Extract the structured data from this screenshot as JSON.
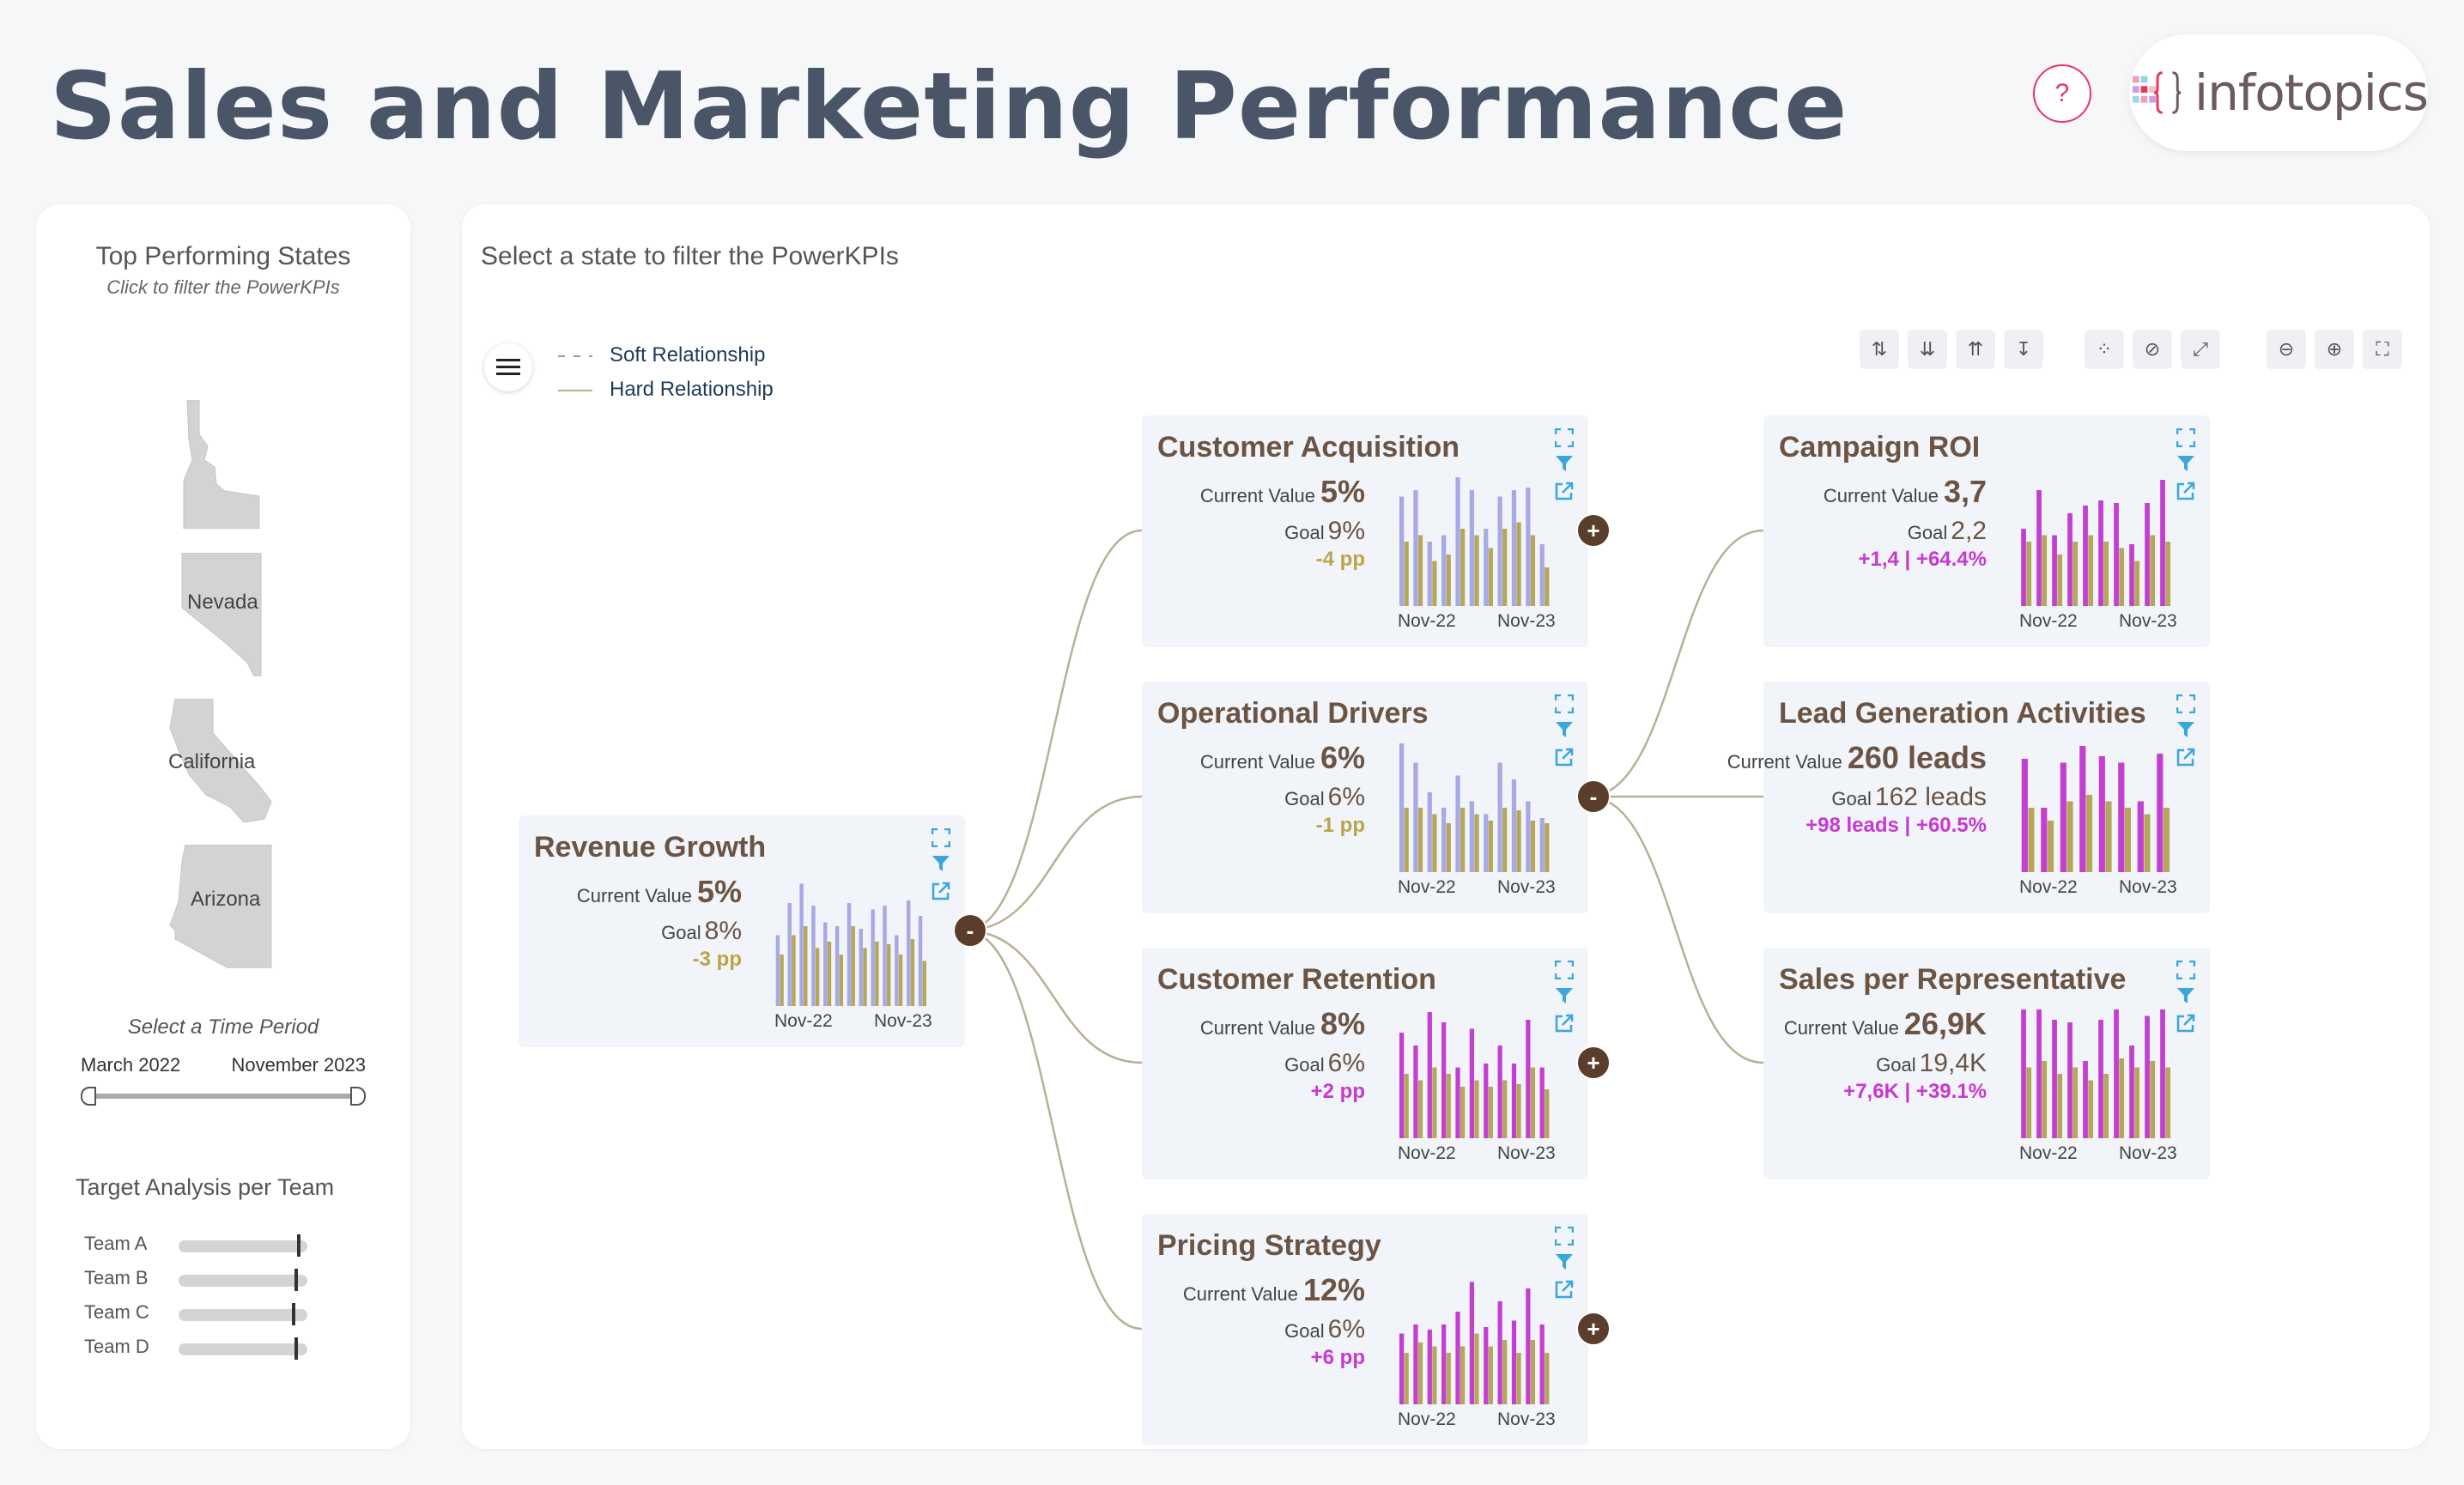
{
  "header": {
    "title": "Sales and Marketing Performance",
    "help": "?",
    "logo_text": "infotopics"
  },
  "left": {
    "title": "Top Performing States",
    "subtitle": "Click to filter the PowerKPIs",
    "states": [
      {
        "name": "Idaho",
        "label": ""
      },
      {
        "name": "Nevada",
        "label": "Nevada"
      },
      {
        "name": "California",
        "label": "California"
      },
      {
        "name": "Arizona",
        "label": "Arizona"
      }
    ],
    "time": {
      "title": "Select a Time Period",
      "from": "March 2022",
      "to": "November 2023"
    },
    "target": {
      "title": "Target Analysis per Team",
      "teams": [
        {
          "name": "Team A",
          "value": 0.92
        },
        {
          "name": "Team B",
          "value": 0.9
        },
        {
          "name": "Team C",
          "value": 0.88
        },
        {
          "name": "Team D",
          "value": 0.9
        }
      ]
    }
  },
  "main": {
    "instruction": "Select a state to filter the PowerKPIs",
    "legend": {
      "soft": "Soft Relationship",
      "hard": "Hard Relationship"
    },
    "colors": {
      "card_bg": "#f1f4f8",
      "bar_lavender": "#a7a9e6",
      "bar_olive": "#b5a65a",
      "bar_magenta": "#c33fd2",
      "neg": "#b9a64a",
      "pos": "#c938d1",
      "title": "#6b5443",
      "link": "#b8b095"
    },
    "cards": [
      {
        "id": "revenue",
        "title": "Revenue Growth",
        "cv_label": "Current Value",
        "cv": "5%",
        "goal_label": "Goal",
        "goal": "8%",
        "variance": "-3 pp",
        "positive": false,
        "x_start": "Nov-22",
        "x_end": "Nov-23",
        "toggle": "-",
        "bars": [
          [
            0.55,
            0.4,
            0
          ],
          [
            0.8,
            0.55,
            0
          ],
          [
            0.95,
            0.62,
            0
          ],
          [
            0.78,
            0.45,
            0
          ],
          [
            0.65,
            0.5,
            0
          ],
          [
            0.62,
            0.4,
            0
          ],
          [
            0.8,
            0.62,
            0
          ],
          [
            0.6,
            0.45,
            0
          ],
          [
            0.75,
            0.5,
            0
          ],
          [
            0.78,
            0.48,
            0
          ],
          [
            0.55,
            0.4,
            0
          ],
          [
            0.82,
            0.52,
            0
          ],
          [
            0.7,
            0.35,
            0
          ]
        ]
      },
      {
        "id": "acq",
        "title": "Customer Acquisition",
        "cv_label": "Current Value",
        "cv": "5%",
        "goal_label": "Goal",
        "goal": "9%",
        "variance": "-4 pp",
        "positive": false,
        "x_start": "Nov-22",
        "x_end": "Nov-23",
        "toggle": "+",
        "bars": [
          [
            0.85,
            0.5,
            0
          ],
          [
            0.9,
            0.55,
            0
          ],
          [
            0.5,
            0.35,
            0
          ],
          [
            0.55,
            0.4,
            0
          ],
          [
            1.0,
            0.6,
            0
          ],
          [
            0.9,
            0.55,
            0
          ],
          [
            0.6,
            0.45,
            0
          ],
          [
            0.85,
            0.6,
            0
          ],
          [
            0.9,
            0.65,
            0
          ],
          [
            0.92,
            0.55,
            0
          ],
          [
            0.48,
            0.3,
            0
          ]
        ]
      },
      {
        "id": "ops",
        "title": "Operational Drivers",
        "cv_label": "Current Value",
        "cv": "6%",
        "goal_label": "Goal",
        "goal": "6%",
        "variance": "-1 pp",
        "positive": false,
        "x_start": "Nov-22",
        "x_end": "Nov-23",
        "toggle": "-",
        "bars": [
          [
            1.0,
            0.5,
            0
          ],
          [
            0.85,
            0.5,
            0
          ],
          [
            0.62,
            0.45,
            0
          ],
          [
            0.5,
            0.38,
            0
          ],
          [
            0.75,
            0.5,
            0
          ],
          [
            0.55,
            0.45,
            0
          ],
          [
            0.45,
            0.4,
            0
          ],
          [
            0.85,
            0.5,
            0
          ],
          [
            0.72,
            0.48,
            0
          ],
          [
            0.55,
            0.4,
            0
          ],
          [
            0.42,
            0.38,
            0
          ]
        ]
      },
      {
        "id": "ret",
        "title": "Customer Retention",
        "cv_label": "Current Value",
        "cv": "8%",
        "goal_label": "Goal",
        "goal": "6%",
        "variance": "+2 pp",
        "positive": true,
        "x_start": "Nov-22",
        "x_end": "Nov-23",
        "toggle": "+",
        "bars": [
          [
            0.82,
            0.5,
            0
          ],
          [
            0.72,
            0.45,
            0
          ],
          [
            0.98,
            0.55,
            0
          ],
          [
            0.9,
            0.5,
            0
          ],
          [
            0.55,
            0.4,
            0
          ],
          [
            0.85,
            0.45,
            0
          ],
          [
            0.58,
            0.4,
            0
          ],
          [
            0.72,
            0.45,
            0
          ],
          [
            0.58,
            0.42,
            0
          ],
          [
            0.92,
            0.55,
            0
          ],
          [
            0.55,
            0.38,
            0
          ]
        ]
      },
      {
        "id": "price",
        "title": "Pricing Strategy",
        "cv_label": "Current Value",
        "cv": "12%",
        "goal_label": "Goal",
        "goal": "6%",
        "variance": "+6 pp",
        "positive": true,
        "x_start": "Nov-22",
        "x_end": "Nov-23",
        "toggle": "+",
        "bars": [
          [
            0.55,
            0.4,
            0
          ],
          [
            0.62,
            0.48,
            0
          ],
          [
            0.58,
            0.45,
            0
          ],
          [
            0.62,
            0.4,
            0
          ],
          [
            0.72,
            0.45,
            0
          ],
          [
            0.95,
            0.55,
            0
          ],
          [
            0.6,
            0.45,
            0
          ],
          [
            0.8,
            0.5,
            0
          ],
          [
            0.65,
            0.4,
            0
          ],
          [
            0.9,
            0.5,
            0
          ],
          [
            0.62,
            0.4,
            0
          ]
        ]
      },
      {
        "id": "roi",
        "title": "Campaign ROI",
        "cv_label": "Current Value",
        "cv": "3,7",
        "goal_label": "Goal",
        "goal": "2,2",
        "variance": "+1,4 | +64.4%",
        "positive": true,
        "x_start": "Nov-22",
        "x_end": "Nov-23",
        "bars": [
          [
            0.6,
            0.5,
            0
          ],
          [
            0.9,
            0.55,
            0
          ],
          [
            0.55,
            0.4,
            0
          ],
          [
            0.72,
            0.5,
            0
          ],
          [
            0.78,
            0.55,
            0
          ],
          [
            0.82,
            0.5,
            0
          ],
          [
            0.8,
            0.45,
            0
          ],
          [
            0.48,
            0.35,
            0
          ],
          [
            0.8,
            0.55,
            0
          ],
          [
            0.98,
            0.5,
            0
          ]
        ]
      },
      {
        "id": "lead",
        "title": "Lead Generation Activities",
        "cv_label": "Current Value",
        "cv": "260 leads",
        "goal_label": "Goal",
        "goal": "162 leads",
        "variance": "+98 leads | +60.5%",
        "positive": true,
        "x_start": "Nov-22",
        "x_end": "Nov-23",
        "bars": [
          [
            0.88,
            0.5,
            0
          ],
          [
            0.5,
            0.4,
            0
          ],
          [
            0.85,
            0.55,
            0
          ],
          [
            0.98,
            0.6,
            0
          ],
          [
            0.9,
            0.55,
            0
          ],
          [
            0.85,
            0.5,
            0
          ],
          [
            0.55,
            0.45,
            0
          ],
          [
            0.92,
            0.5,
            0
          ]
        ]
      },
      {
        "id": "sales",
        "title": "Sales per Representative",
        "cv_label": "Current Value",
        "cv": "26,9K",
        "goal_label": "Goal",
        "goal": "19,4K",
        "variance": "+7,6K | +39.1%",
        "positive": true,
        "x_start": "Nov-22",
        "x_end": "Nov-23",
        "bars": [
          [
            1.0,
            0.55,
            0
          ],
          [
            1.0,
            0.6,
            0
          ],
          [
            0.92,
            0.5,
            0
          ],
          [
            0.9,
            0.55,
            0
          ],
          [
            0.6,
            0.45,
            0
          ],
          [
            0.92,
            0.5,
            0
          ],
          [
            1.0,
            0.62,
            0
          ],
          [
            0.72,
            0.55,
            0
          ],
          [
            0.95,
            0.6,
            0
          ],
          [
            1.0,
            0.55,
            0
          ]
        ]
      }
    ]
  }
}
